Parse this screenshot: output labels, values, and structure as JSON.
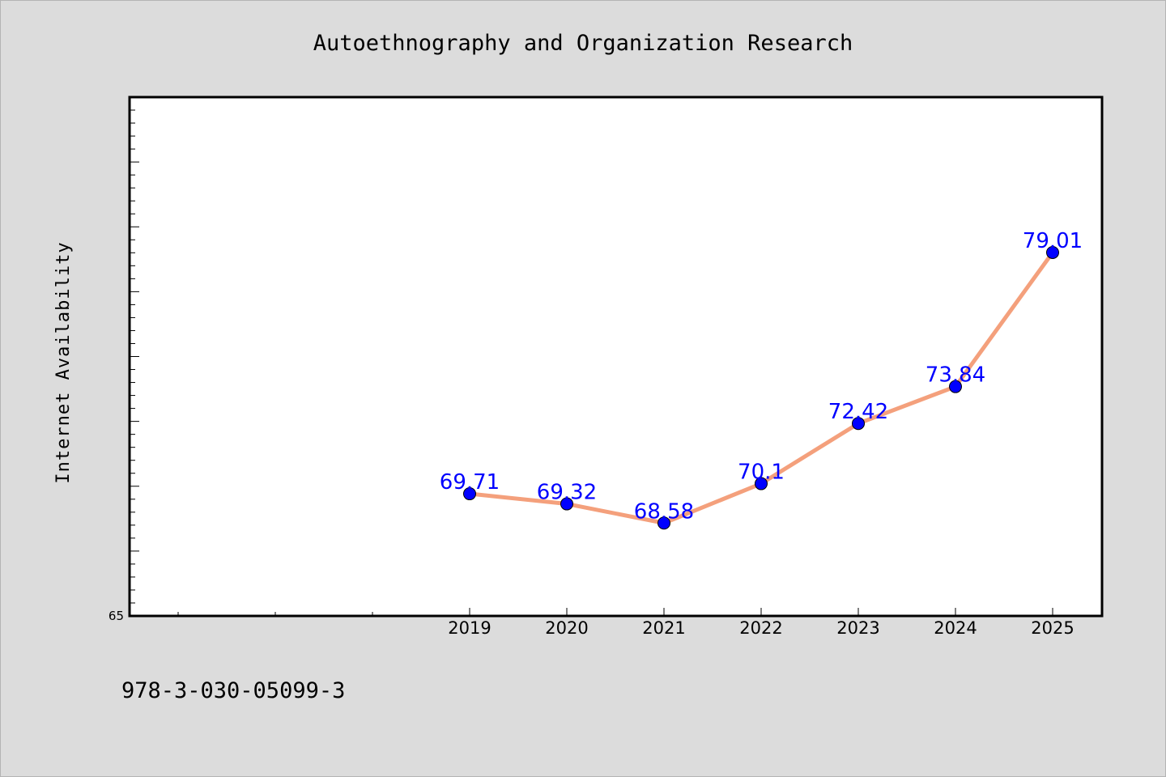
{
  "chart_data": {
    "type": "line",
    "title": "Autoethnography and Organization Research",
    "xlabel": "",
    "ylabel": "Internet Availability",
    "categories": [
      "2019",
      "2020",
      "2021",
      "2022",
      "2023",
      "2024",
      "2025"
    ],
    "series": [
      {
        "values": [
          69.71,
          69.32,
          68.58,
          70.1,
          72.42,
          73.84,
          79.01
        ],
        "data_labels": [
          "69.71",
          "69.32",
          "68.58",
          "70.1",
          "72.42",
          "73.84",
          "79.01"
        ]
      }
    ],
    "ylim": [
      65,
      85
    ],
    "ymin_label": "65",
    "grid": false,
    "legend": "none",
    "colors": {
      "line": "#f4a07c",
      "marker": "#0000ff",
      "data_label": "#0000ff",
      "plot_bg": "#ffffff",
      "page_bg": "#dcdcdc"
    }
  },
  "footer": {
    "isbn": "978-3-030-05099-3"
  }
}
